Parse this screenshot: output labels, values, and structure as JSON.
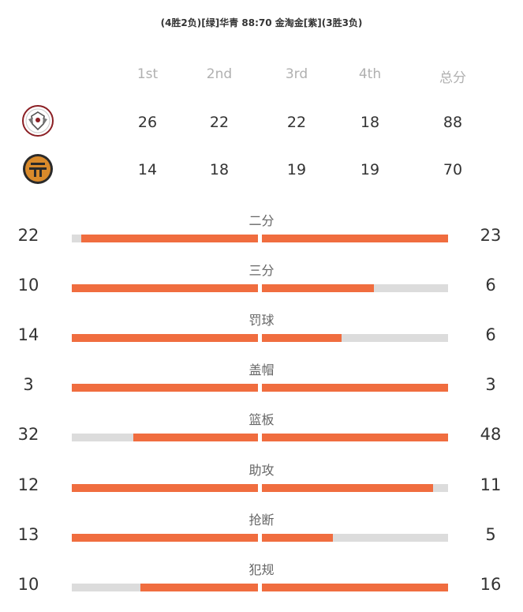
{
  "matchup": {
    "title": "(4胜2负)[绿]华青 88:70 金淘金[紫](3胜3负)"
  },
  "table": {
    "headers": [
      "1st",
      "2nd",
      "3rd",
      "4th",
      "总分"
    ],
    "teams": [
      {
        "logo": "shield-emblem-icon",
        "quarters": [
          "26",
          "22",
          "22",
          "18",
          "88"
        ]
      },
      {
        "logo": "gold-emblem-icon",
        "quarters": [
          "14",
          "18",
          "19",
          "19",
          "70"
        ]
      }
    ]
  },
  "stats": [
    {
      "label": "二分",
      "left": "22",
      "right": "23",
      "left_fill": 0.95,
      "right_fill": 1.0
    },
    {
      "label": "三分",
      "left": "10",
      "right": "6",
      "left_fill": 1.0,
      "right_fill": 0.6
    },
    {
      "label": "罚球",
      "left": "14",
      "right": "6",
      "left_fill": 1.0,
      "right_fill": 0.43
    },
    {
      "label": "盖帽",
      "left": "3",
      "right": "3",
      "left_fill": 1.0,
      "right_fill": 1.0
    },
    {
      "label": "篮板",
      "left": "32",
      "right": "48",
      "left_fill": 0.67,
      "right_fill": 1.0
    },
    {
      "label": "助攻",
      "left": "12",
      "right": "11",
      "left_fill": 1.0,
      "right_fill": 0.92
    },
    {
      "label": "抢断",
      "left": "13",
      "right": "5",
      "left_fill": 1.0,
      "right_fill": 0.38
    },
    {
      "label": "犯规",
      "left": "10",
      "right": "16",
      "left_fill": 0.63,
      "right_fill": 1.0
    }
  ],
  "colors": {
    "bar_fill": "#f06d3f",
    "bar_track": "#dcdcdc"
  }
}
